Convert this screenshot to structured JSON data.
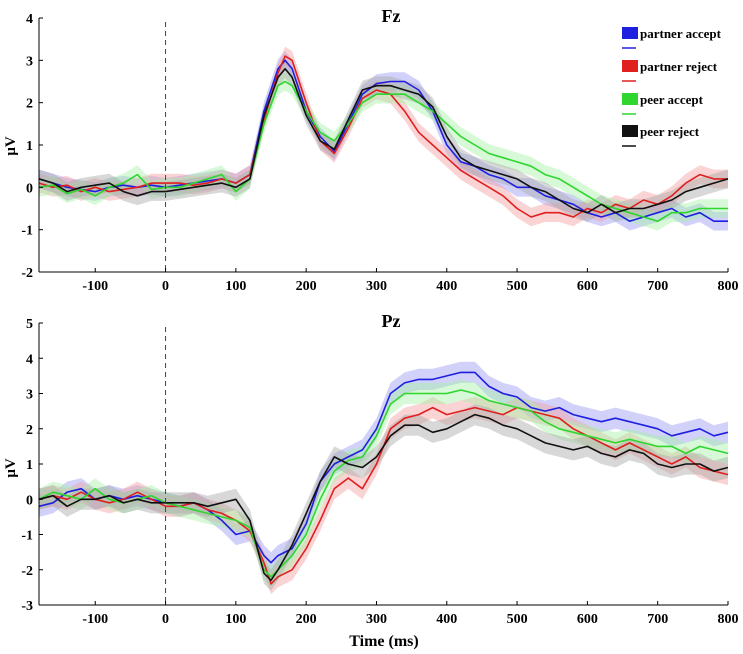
{
  "chart_data": [
    {
      "type": "line",
      "title": "Fz",
      "ylabel": "μV",
      "xlabel": "",
      "xlim": [
        -180,
        800
      ],
      "ylim": [
        -2,
        4
      ],
      "xticks": [
        -100,
        0,
        100,
        200,
        300,
        400,
        500,
        600,
        700,
        800
      ],
      "yticks": [
        -2,
        -1,
        0,
        1,
        2,
        3,
        4
      ],
      "band_halfwidth": 0.22,
      "legend": [
        {
          "name": "partner accept",
          "color": "#1f1fe0"
        },
        {
          "name": "partner reject",
          "color": "#e01f1f"
        },
        {
          "name": "peer accept",
          "color": "#2ed62e"
        },
        {
          "name": "peer reject",
          "color": "#111111"
        }
      ],
      "x": [
        -180,
        -160,
        -140,
        -120,
        -100,
        -80,
        -60,
        -40,
        -20,
        0,
        20,
        40,
        60,
        80,
        100,
        120,
        140,
        160,
        170,
        180,
        200,
        220,
        240,
        260,
        280,
        300,
        320,
        340,
        360,
        380,
        400,
        420,
        440,
        460,
        480,
        500,
        520,
        540,
        560,
        580,
        600,
        620,
        640,
        660,
        680,
        700,
        720,
        740,
        760,
        780,
        800
      ],
      "series": [
        {
          "name": "partner accept",
          "color": "#1f1fe0",
          "band": "#9a9af5",
          "values": [
            0.2,
            0.1,
            0.0,
            -0.05,
            -0.1,
            0.0,
            0.05,
            0.0,
            0.05,
            0.0,
            0.05,
            0.1,
            0.15,
            0.2,
            0.1,
            0.3,
            1.8,
            2.8,
            3.0,
            2.8,
            1.8,
            1.2,
            0.85,
            1.5,
            2.2,
            2.45,
            2.5,
            2.5,
            2.3,
            1.8,
            1.0,
            0.6,
            0.5,
            0.3,
            0.2,
            0.0,
            0.0,
            -0.2,
            -0.3,
            -0.4,
            -0.6,
            -0.7,
            -0.6,
            -0.8,
            -0.7,
            -0.6,
            -0.5,
            -0.7,
            -0.6,
            -0.8,
            -0.8
          ]
        },
        {
          "name": "partner reject",
          "color": "#e01f1f",
          "band": "#f5a0a0",
          "values": [
            0.1,
            0.0,
            0.05,
            -0.1,
            0.0,
            -0.1,
            -0.05,
            0.0,
            0.1,
            0.1,
            0.1,
            0.05,
            0.1,
            0.2,
            0.1,
            0.3,
            1.6,
            2.7,
            3.1,
            3.0,
            2.0,
            1.1,
            0.8,
            1.4,
            2.1,
            2.3,
            2.2,
            1.8,
            1.3,
            1.0,
            0.7,
            0.4,
            0.2,
            0.0,
            -0.2,
            -0.5,
            -0.7,
            -0.6,
            -0.6,
            -0.7,
            -0.5,
            -0.6,
            -0.4,
            -0.5,
            -0.3,
            -0.4,
            -0.2,
            0.1,
            0.3,
            0.2,
            0.2
          ]
        },
        {
          "name": "peer accept",
          "color": "#2ed62e",
          "band": "#a6f2a6",
          "values": [
            0.0,
            0.05,
            -0.15,
            -0.05,
            -0.2,
            0.0,
            0.1,
            0.3,
            -0.05,
            0.0,
            0.0,
            0.1,
            0.2,
            0.3,
            -0.1,
            0.2,
            1.5,
            2.4,
            2.5,
            2.4,
            1.8,
            1.3,
            1.1,
            1.5,
            2.0,
            2.2,
            2.2,
            2.2,
            2.0,
            1.8,
            1.5,
            1.2,
            1.0,
            0.8,
            0.7,
            0.6,
            0.5,
            0.3,
            0.2,
            0.0,
            -0.2,
            -0.4,
            -0.5,
            -0.6,
            -0.7,
            -0.8,
            -0.6,
            -0.6,
            -0.5,
            -0.5,
            -0.5
          ]
        },
        {
          "name": "peer reject",
          "color": "#111111",
          "band": "#a8a8a8",
          "values": [
            0.2,
            0.1,
            -0.1,
            0.0,
            0.05,
            0.1,
            -0.1,
            -0.2,
            -0.1,
            -0.1,
            -0.05,
            0.0,
            0.05,
            0.1,
            0.0,
            0.2,
            1.7,
            2.6,
            2.8,
            2.6,
            1.7,
            1.1,
            0.9,
            1.6,
            2.3,
            2.4,
            2.4,
            2.3,
            2.2,
            1.9,
            1.2,
            0.7,
            0.5,
            0.4,
            0.3,
            0.2,
            0.0,
            -0.1,
            -0.3,
            -0.5,
            -0.6,
            -0.4,
            -0.6,
            -0.5,
            -0.5,
            -0.4,
            -0.3,
            -0.1,
            0.0,
            0.1,
            0.2
          ]
        }
      ]
    },
    {
      "type": "line",
      "title": "Pz",
      "ylabel": "μV",
      "xlabel": "Time (ms)",
      "xlim": [
        -180,
        800
      ],
      "ylim": [
        -3,
        5
      ],
      "xticks": [
        -100,
        0,
        100,
        200,
        300,
        400,
        500,
        600,
        700,
        800
      ],
      "yticks": [
        -3,
        -2,
        -1,
        0,
        1,
        2,
        3,
        4,
        5
      ],
      "band_halfwidth": 0.3,
      "x": [
        -180,
        -160,
        -140,
        -120,
        -100,
        -80,
        -60,
        -40,
        -20,
        0,
        20,
        40,
        60,
        80,
        100,
        120,
        140,
        150,
        160,
        180,
        200,
        220,
        240,
        260,
        280,
        300,
        320,
        340,
        360,
        380,
        400,
        420,
        440,
        460,
        480,
        500,
        520,
        540,
        560,
        580,
        600,
        620,
        640,
        660,
        680,
        700,
        720,
        740,
        760,
        780,
        800
      ],
      "series": [
        {
          "name": "partner accept",
          "color": "#1f1fe0",
          "band": "#9a9af5",
          "values": [
            -0.2,
            -0.1,
            0.2,
            0.3,
            0.0,
            0.1,
            0.0,
            0.1,
            0.0,
            -0.1,
            -0.2,
            -0.1,
            -0.3,
            -0.6,
            -1.0,
            -0.9,
            -1.6,
            -1.8,
            -1.6,
            -1.4,
            -0.7,
            0.5,
            1.0,
            1.2,
            1.4,
            2.0,
            3.0,
            3.3,
            3.4,
            3.4,
            3.5,
            3.6,
            3.6,
            3.2,
            3.0,
            2.9,
            2.6,
            2.5,
            2.6,
            2.4,
            2.3,
            2.2,
            2.3,
            2.2,
            2.1,
            2.0,
            1.8,
            1.9,
            2.0,
            1.8,
            1.9
          ]
        },
        {
          "name": "partner reject",
          "color": "#e01f1f",
          "band": "#f5a0a0",
          "values": [
            0.0,
            0.1,
            0.0,
            0.2,
            0.0,
            -0.1,
            0.0,
            0.2,
            0.0,
            -0.2,
            -0.2,
            -0.1,
            -0.3,
            -0.4,
            -0.6,
            -0.9,
            -1.8,
            -2.4,
            -2.2,
            -2.0,
            -1.4,
            -0.6,
            0.3,
            0.6,
            0.3,
            1.0,
            2.0,
            2.3,
            2.4,
            2.6,
            2.4,
            2.5,
            2.6,
            2.5,
            2.4,
            2.6,
            2.5,
            2.4,
            2.3,
            2.0,
            1.8,
            1.6,
            1.4,
            1.6,
            1.4,
            1.2,
            1.0,
            1.2,
            0.9,
            0.8,
            0.7
          ]
        },
        {
          "name": "peer accept",
          "color": "#2ed62e",
          "band": "#a6f2a6",
          "values": [
            0.0,
            0.2,
            0.1,
            0.0,
            0.3,
            0.0,
            -0.1,
            0.0,
            0.1,
            -0.1,
            -0.2,
            -0.3,
            -0.4,
            -0.5,
            -0.6,
            -0.8,
            -2.0,
            -2.2,
            -2.0,
            -1.6,
            -1.0,
            0.0,
            0.8,
            1.1,
            1.2,
            1.8,
            2.7,
            3.0,
            3.0,
            3.0,
            3.0,
            3.1,
            3.0,
            2.8,
            2.7,
            2.6,
            2.5,
            2.2,
            2.0,
            1.9,
            1.8,
            1.7,
            1.6,
            1.7,
            1.6,
            1.5,
            1.5,
            1.3,
            1.5,
            1.4,
            1.3
          ]
        },
        {
          "name": "peer reject",
          "color": "#111111",
          "band": "#a8a8a8",
          "values": [
            0.0,
            0.1,
            -0.2,
            0.0,
            0.0,
            0.1,
            -0.1,
            0.0,
            -0.1,
            -0.1,
            -0.1,
            -0.1,
            -0.2,
            -0.1,
            0.0,
            -0.6,
            -2.1,
            -2.3,
            -2.0,
            -1.3,
            -0.4,
            0.5,
            1.2,
            1.0,
            0.9,
            1.2,
            1.8,
            2.1,
            2.1,
            1.9,
            2.0,
            2.2,
            2.4,
            2.3,
            2.1,
            2.0,
            1.8,
            1.6,
            1.5,
            1.4,
            1.5,
            1.3,
            1.2,
            1.4,
            1.3,
            1.0,
            0.9,
            1.0,
            1.0,
            0.8,
            0.9
          ]
        }
      ]
    }
  ]
}
